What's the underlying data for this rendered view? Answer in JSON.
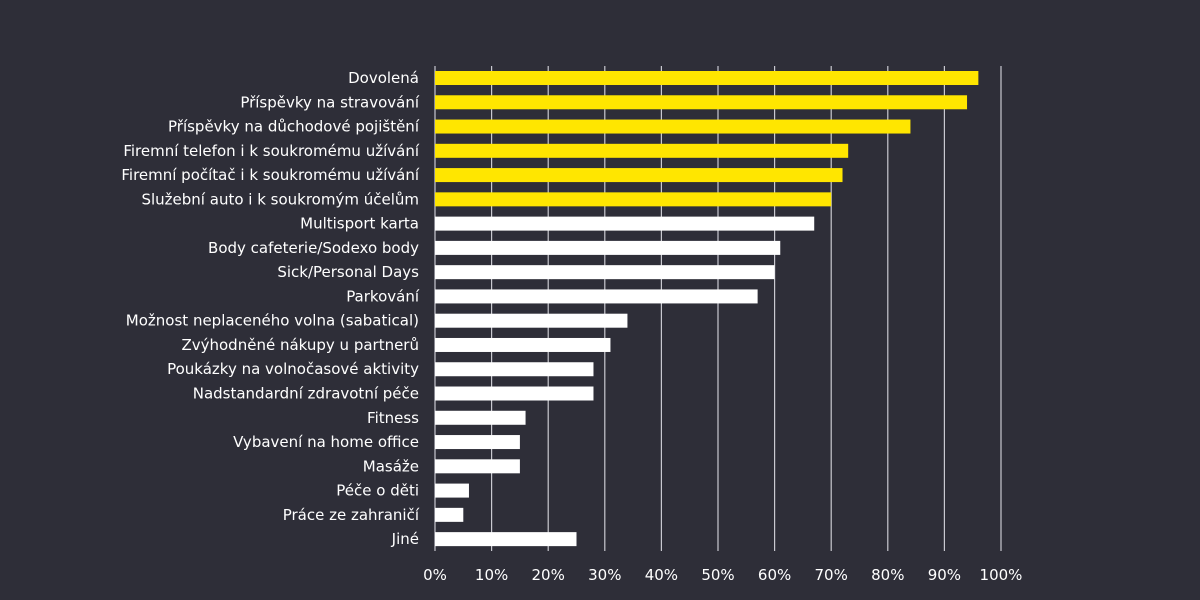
{
  "chart_data": {
    "type": "bar",
    "orientation": "horizontal",
    "title": "",
    "xlabel": "",
    "ylabel": "",
    "xlim": [
      0,
      100
    ],
    "x_ticks": [
      "0%",
      "10%",
      "20%",
      "30%",
      "40%",
      "50%",
      "60%",
      "70%",
      "80%",
      "90%",
      "100%"
    ],
    "grid": true,
    "legend": "none",
    "unit": "%",
    "colors": {
      "background": "#2e2e38",
      "highlight": "#ffe600",
      "default": "#ffffff",
      "text": "#ffffff",
      "grid": "#c9c9d0"
    },
    "categories": [
      "Dovolená",
      "Příspěvky na stravování",
      "Příspěvky na důchodové pojištění",
      "Firemní telefon i k soukromému užívání",
      "Firemní počítač i k soukromému užívání",
      "Služební auto i k soukromým účelům",
      "Multisport karta",
      "Body cafeterie/Sodexo body",
      "Sick/Personal Days",
      "Parkování",
      "Možnost neplaceného volna (sabatical)",
      "Zvýhodněné nákupy u partnerů",
      "Poukázky na volnočasové aktivity",
      "Nadstandardní zdravotní péče",
      "Fitness",
      "Vybavení na home office",
      "Masáže",
      "Péče o děti",
      "Práce ze zahraničí",
      "Jiné"
    ],
    "values": [
      96,
      94,
      84,
      73,
      72,
      70,
      67,
      61,
      60,
      57,
      34,
      31,
      28,
      28,
      16,
      15,
      15,
      6,
      5,
      25
    ],
    "highlighted": [
      true,
      true,
      true,
      true,
      true,
      true,
      false,
      false,
      false,
      false,
      false,
      false,
      false,
      false,
      false,
      false,
      false,
      false,
      false,
      false
    ]
  }
}
